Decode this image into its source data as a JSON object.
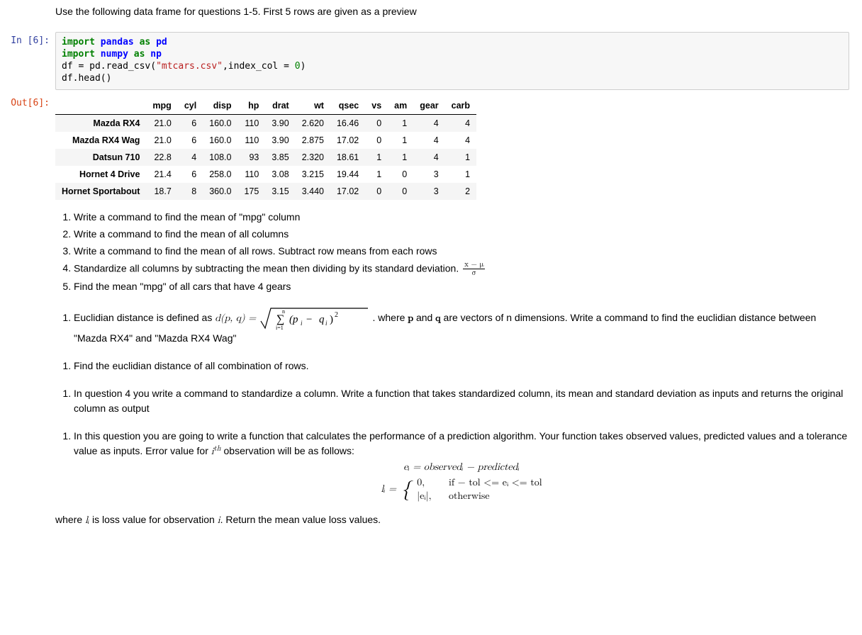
{
  "intro": "Use the following data frame for questions 1-5. First 5 rows are given as a preview",
  "prompts": {
    "in6": "In [6]:",
    "out6": "Out[6]:"
  },
  "code": {
    "kw_import1": "import",
    "mod_pandas": "pandas",
    "kw_as1": "as",
    "alias_pd": "pd",
    "kw_import2": "import",
    "mod_numpy": "numpy",
    "kw_as2": "as",
    "alias_np": "np",
    "line3_a": "df = pd.read_csv(",
    "csv_path": "\"mtcars.csv\"",
    "line3_b": ",index_col = ",
    "zero": "0",
    "line3_c": ")",
    "line4": "df.head()"
  },
  "table": {
    "columns": [
      "mpg",
      "cyl",
      "disp",
      "hp",
      "drat",
      "wt",
      "qsec",
      "vs",
      "am",
      "gear",
      "carb"
    ],
    "index": [
      "Mazda RX4",
      "Mazda RX4 Wag",
      "Datsun 710",
      "Hornet 4 Drive",
      "Hornet Sportabout"
    ],
    "rows": [
      [
        "21.0",
        "6",
        "160.0",
        "110",
        "3.90",
        "2.620",
        "16.46",
        "0",
        "1",
        "4",
        "4"
      ],
      [
        "21.0",
        "6",
        "160.0",
        "110",
        "3.90",
        "2.875",
        "17.02",
        "0",
        "1",
        "4",
        "4"
      ],
      [
        "22.8",
        "4",
        "108.0",
        "93",
        "3.85",
        "2.320",
        "18.61",
        "1",
        "1",
        "4",
        "1"
      ],
      [
        "21.4",
        "6",
        "258.0",
        "110",
        "3.08",
        "3.215",
        "19.44",
        "1",
        "0",
        "3",
        "1"
      ],
      [
        "18.7",
        "8",
        "360.0",
        "175",
        "3.15",
        "3.440",
        "17.02",
        "0",
        "0",
        "3",
        "2"
      ]
    ],
    "header_bg": "#ffffff",
    "row_odd_bg": "#f5f5f5",
    "row_even_bg": "#ffffff",
    "border_color": "#000000"
  },
  "q1_5": {
    "1": "Write a command to find the mean of \"mpg\" column",
    "2": "Write a command to find the mean of all columns",
    "3": "Write a command to find the mean of all rows. Subtract row means from each rows",
    "4_a": "Standardize all columns by subtracting the mean then dividing by its standard deviation. ",
    "4_frac_top": "x − μ",
    "4_frac_bot": "σ",
    "5": "Find the mean \"mpg\" of all cars that have 4 gears"
  },
  "q6": {
    "a": "Euclidian distance is defined as ",
    "dpq": "d(p, q) = ",
    "sum_expr": "∑",
    "sum_sub": "i=1",
    "sum_sup": "n",
    "inner": "(pᵢ − qᵢ)²",
    "b": ". where ",
    "p": "p",
    "and": " and ",
    "q": "q",
    "c": " are vectors of n dimensions. Write a command to find the euclidian distance between \"Mazda RX4\" and \"Mazda RX4 Wag\""
  },
  "q7": "Find the euclidian distance of all combination of rows.",
  "q8": "In question 4 you write a command to standardize a column. Write a function that takes standardized column, its mean and standard deviation as inputs and returns the original column as output",
  "q9": {
    "intro_a": "In this question you are going to write a function that calculates the performance of a prediction algorithm. Your function takes observed values, predicted values and a tolerance value as inputs. Error value for ",
    "ith": "i",
    "th": "th",
    "intro_b": " observation will be as follows:",
    "eq1": "eᵢ = observedᵢ − predictedᵢ",
    "li_eq": "lᵢ = ",
    "case1_v": "0,",
    "case1_c": "if − tol <= eᵢ <= tol",
    "case2_v": "|eᵢ|,",
    "case2_c": "otherwise",
    "outro_a": "where ",
    "li": "lᵢ",
    "outro_b": " is loss value for observation ",
    "i": "i",
    "outro_c": ". Return the mean value loss values."
  },
  "colors": {
    "code_bg": "#f7f7f7",
    "code_border": "#cfcfcf",
    "prompt_in": "#303F9F",
    "prompt_out": "#D84315",
    "kw_green": "#008000",
    "kw_blue": "#0000FF",
    "string": "#BA2121"
  }
}
